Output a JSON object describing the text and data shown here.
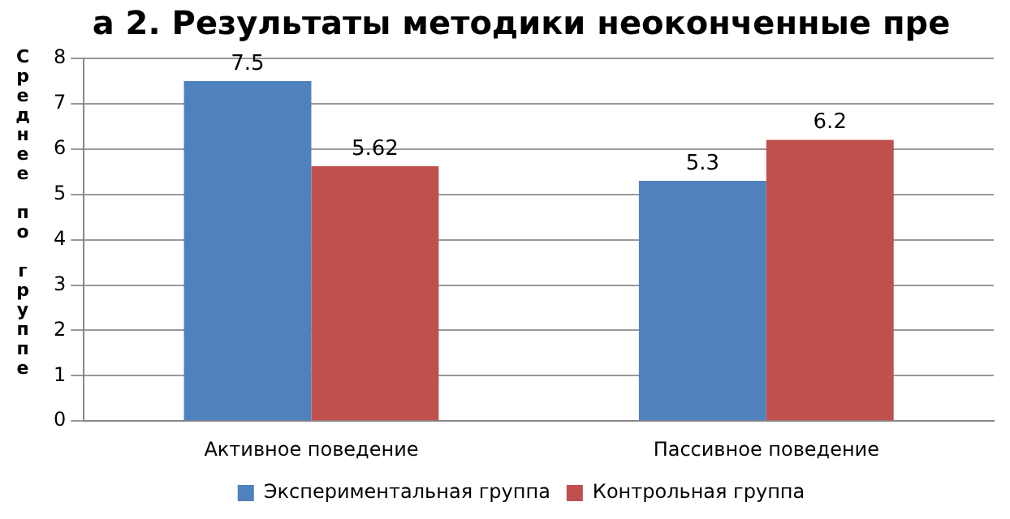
{
  "chart_data": {
    "type": "bar",
    "title": "а 2. Результаты методики неоконченные пре",
    "ylabel": "Среднее по группе",
    "categories": [
      "Активное поведение",
      "Пассивное поведение"
    ],
    "series": [
      {
        "name": "Экспериментальная группа",
        "color": "#4f81bd",
        "values": [
          7.5,
          5.3
        ]
      },
      {
        "name": "Контрольная группа",
        "color": "#c0504d",
        "values": [
          5.62,
          6.2
        ]
      }
    ],
    "ylim": [
      0,
      8
    ],
    "yticks": [
      0,
      1,
      2,
      3,
      4,
      5,
      6,
      7,
      8
    ],
    "grid": "y",
    "legend": "bottom",
    "data_labels": true
  }
}
